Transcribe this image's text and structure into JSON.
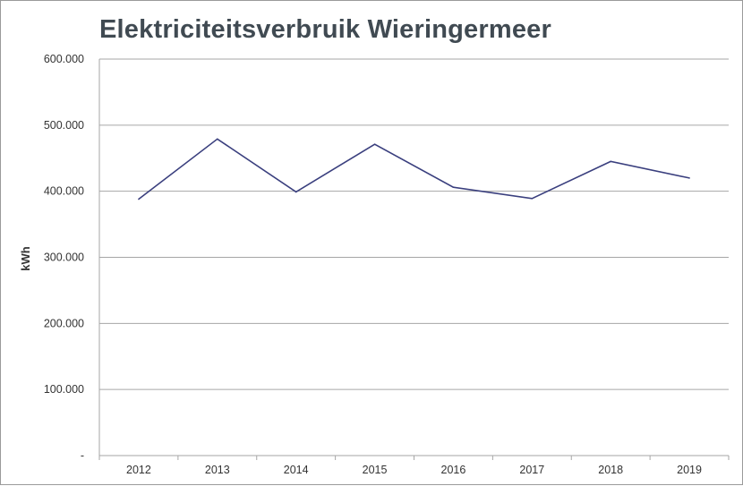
{
  "chart_data": {
    "type": "line",
    "title": "Elektriciteitsverbruik Wieringermeer",
    "xlabel": "",
    "ylabel": "kWh",
    "categories": [
      "2012",
      "2013",
      "2014",
      "2015",
      "2016",
      "2017",
      "2018",
      "2019"
    ],
    "series": [
      {
        "values": [
          388000,
          479000,
          399000,
          471000,
          406000,
          389000,
          445000,
          420000
        ],
        "color": "#3a3f7e"
      }
    ],
    "ylim": [
      0,
      600000
    ],
    "yticks": [
      0,
      100000,
      200000,
      300000,
      400000,
      500000,
      600000
    ],
    "ytick_labels": [
      "-",
      "100.000",
      "200.000",
      "300.000",
      "400.000",
      "500.000",
      "600.000"
    ],
    "grid": true,
    "legend": "none"
  }
}
